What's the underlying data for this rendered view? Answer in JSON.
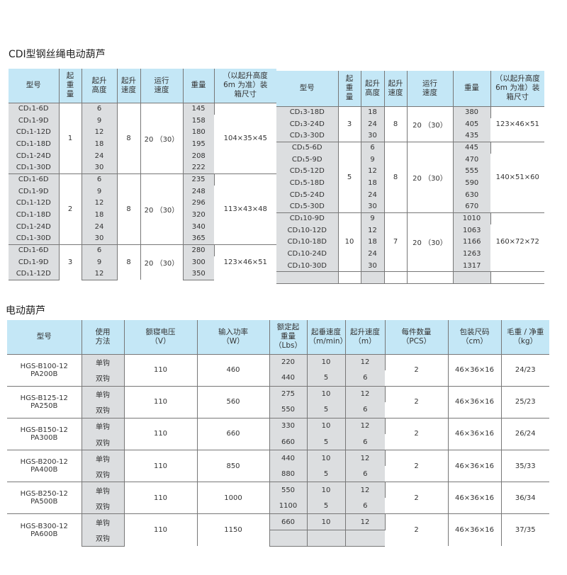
{
  "section1": {
    "title": "CDI型钢丝绳电动葫芦",
    "headers": [
      "型号",
      "起\n重\n量",
      "起升\n高度",
      "起升\n速度",
      "运行\n速度",
      "重量",
      "（以起升高度\n6m 为准）装\n箱尺寸"
    ],
    "left_groups": [
      {
        "capacity": "1",
        "speed": "8",
        "travel": "20 （30）",
        "box": "104×35×45",
        "rows": [
          [
            "CD₁1-6D",
            "6",
            "145"
          ],
          [
            "CD₁1-9D",
            "9",
            "158"
          ],
          [
            "CD₁1-12D",
            "12",
            "180"
          ],
          [
            "CD₁1-18D",
            "18",
            "195"
          ],
          [
            "CD₁1-24D",
            "24",
            "208"
          ],
          [
            "CD₁1-30D",
            "30",
            "222"
          ]
        ]
      },
      {
        "capacity": "2",
        "speed": "8",
        "travel": "20 （30）",
        "box": "113×43×48",
        "rows": [
          [
            "CD₁1-6D",
            "6",
            "235"
          ],
          [
            "CD₁1-9D",
            "9",
            "248"
          ],
          [
            "CD₁1-12D",
            "12",
            "296"
          ],
          [
            "CD₁1-18D",
            "18",
            "320"
          ],
          [
            "CD₁1-24D",
            "24",
            "340"
          ],
          [
            "CD₁1-30D",
            "30",
            "365"
          ]
        ]
      },
      {
        "capacity": "3",
        "speed": "8",
        "travel": "20 （30）",
        "box": "123×46×51",
        "rows": [
          [
            "CD₁1-6D",
            "6",
            "280"
          ],
          [
            "CD₁1-9D",
            "9",
            "300"
          ],
          [
            "CD₁1-12D",
            "12",
            "350"
          ]
        ]
      }
    ],
    "right_groups": [
      {
        "capacity": "3",
        "speed": "8",
        "travel": "20 （30）",
        "box": "123×46×51",
        "rows": [
          [
            "CD₁3-18D",
            "18",
            "380"
          ],
          [
            "CD₁3-24D",
            "24",
            "405"
          ],
          [
            "CD₁3-30D",
            "30",
            "435"
          ]
        ]
      },
      {
        "capacity": "5",
        "speed": "8",
        "travel": "20 （30）",
        "box": "140×51×60",
        "rows": [
          [
            "CD₁5-6D",
            "6",
            "445"
          ],
          [
            "CD₁5-9D",
            "9",
            "470"
          ],
          [
            "CD₁5-12D",
            "12",
            "555"
          ],
          [
            "CD₁5-18D",
            "18",
            "590"
          ],
          [
            "CD₁5-24D",
            "24",
            "630"
          ],
          [
            "CD₁5-30D",
            "30",
            "670"
          ]
        ]
      },
      {
        "capacity": "10",
        "speed": "7",
        "travel": "20 （30）",
        "box": "160×72×72",
        "rows": [
          [
            "CD₁10-9D",
            "9",
            "1010"
          ],
          [
            "CD₁10-12D",
            "12",
            "1063"
          ],
          [
            "CD₁10-18D",
            "18",
            "1166"
          ],
          [
            "CD₁10-24D",
            "24",
            "1263"
          ],
          [
            "CD₁10-30D",
            "30",
            "1317"
          ]
        ]
      }
    ]
  },
  "section2": {
    "title": "电动葫芦",
    "headers": [
      "型号",
      "使用\n方法",
      "额寝电压\n（V）",
      "输入功率\n（W）",
      "额定起\n重量\n（Lbs）",
      "起垂速度\n（m/min）",
      "起升速度\n（m）",
      "每件数量\n（PCS）",
      "包装尺码\n（cm）",
      "毛重 / 净重\n（kg）"
    ],
    "rows": [
      {
        "model": "HGS-B100-12\nPA200B",
        "voltage": "110",
        "power": "460",
        "qty": "2",
        "size": "46×36×16",
        "weight": "24/23",
        "sub": [
          [
            "单钩",
            "220",
            "10",
            "12"
          ],
          [
            "双钩",
            "440",
            "5",
            "6"
          ]
        ]
      },
      {
        "model": "HGS-B125-12\nPA250B",
        "voltage": "110",
        "power": "560",
        "qty": "2",
        "size": "46×36×16",
        "weight": "25/23",
        "sub": [
          [
            "单钩",
            "275",
            "10",
            "12"
          ],
          [
            "双钩",
            "550",
            "5",
            "6"
          ]
        ]
      },
      {
        "model": "HGS-B150-12\nPA300B",
        "voltage": "110",
        "power": "660",
        "qty": "2",
        "size": "46×36×16",
        "weight": "26/24",
        "sub": [
          [
            "单钩",
            "330",
            "10",
            "12"
          ],
          [
            "双钩",
            "660",
            "5",
            "6"
          ]
        ]
      },
      {
        "model": "HGS-B200-12\nPA400B",
        "voltage": "110",
        "power": "850",
        "qty": "2",
        "size": "46×36×16",
        "weight": "35/33",
        "sub": [
          [
            "单钩",
            "440",
            "10",
            "12"
          ],
          [
            "双钩",
            "880",
            "5",
            "6"
          ]
        ]
      },
      {
        "model": "HGS-B250-12\nPA500B",
        "voltage": "110",
        "power": "1000",
        "qty": "2",
        "size": "46×36×16",
        "weight": "36/34",
        "sub": [
          [
            "单钩",
            "550",
            "10",
            "12"
          ],
          [
            "双钩",
            "1100",
            "5",
            "6"
          ]
        ]
      },
      {
        "model": "HGS-B300-12\nPA600B",
        "voltage": "110",
        "power": "1150",
        "qty": "2",
        "size": "46×36×16",
        "weight": "37/35",
        "sub": [
          [
            "单钩",
            "660",
            "10",
            "12"
          ],
          [
            "双钩",
            "",
            "",
            ""
          ]
        ]
      }
    ]
  }
}
